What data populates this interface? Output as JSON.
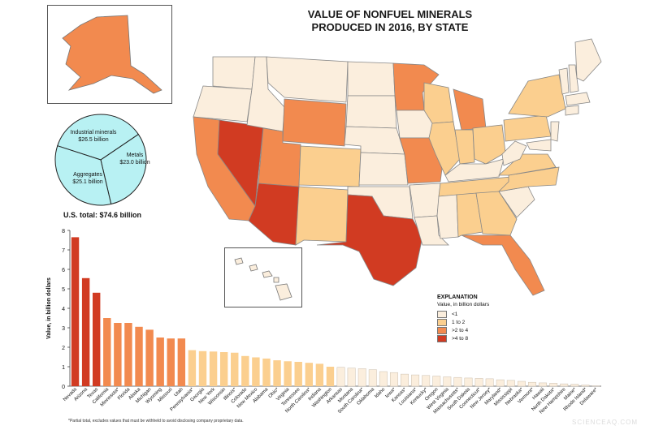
{
  "title": "VALUE OF NONFUEL MINERALS\nPRODUCED IN 2016, BY STATE",
  "colors": {
    "lt1": "#fbeedd",
    "b1to2": "#fbcf8f",
    "b2to4": "#f28a4f",
    "gt4": "#d13b22",
    "pie_fill": "#b8f1f3",
    "border": "#333333"
  },
  "pie": {
    "slices": [
      {
        "label": "Industrial minerals",
        "value_text": "$26.5 billion",
        "value": 26.5
      },
      {
        "label": "Metals",
        "value_text": "$23.0 billion",
        "value": 23.0
      },
      {
        "label": "Aggregates",
        "value_text": "$25.1 billion",
        "value": 25.1
      }
    ],
    "total_label": "U.S. total: $74.6 billion"
  },
  "legend": {
    "title": "EXPLANATION",
    "subtitle": "Value, in billion dollars",
    "items": [
      {
        "label": "<1",
        "color": "#fbeedd"
      },
      {
        "label": "1 to 2",
        "color": "#fbcf8f"
      },
      {
        "label": ">2 to 4",
        "color": "#f28a4f"
      },
      {
        "label": ">4 to 8",
        "color": "#d13b22"
      }
    ]
  },
  "footnote": "*Partial total, excludes values that must be withheld to avoid disclosing company proprietary data.",
  "watermark": "SCIENCEAQ.COM",
  "chart_data": {
    "type": "bar",
    "ylabel": "Value, in billion dollars",
    "ylim": [
      0,
      8
    ],
    "yticks": [
      0,
      1,
      2,
      3,
      4,
      5,
      6,
      7,
      8
    ],
    "categories": [
      "Nevada",
      "Arizona",
      "Texas",
      "California",
      "Minnesota*",
      "Florida",
      "Alaska",
      "Michigan",
      "Wyoming",
      "Missouri",
      "Utah",
      "Pennsylvania*",
      "Georgia",
      "New York",
      "Wisconsin",
      "Illinois*",
      "Colorado",
      "New Mexico",
      "Alabama",
      "Ohio*",
      "Virginia",
      "Tennessee",
      "North Carolina*",
      "Indiana",
      "Washington",
      "Arkansas",
      "Montana",
      "South Carolina*",
      "Oklahoma",
      "Idaho",
      "Iowa*",
      "Kansas*",
      "Louisiana*",
      "Kentucky*",
      "Oregon",
      "West Virginia",
      "Massachusetts*",
      "South Dakota",
      "Connecticut*",
      "New Jersey*",
      "Maryland*",
      "Mississippi",
      "Nebraska*",
      "Vermont*",
      "Hawaii",
      "North Dakota*",
      "New Hampshire",
      "Maine*",
      "Rhode Island*",
      "Delaware*"
    ],
    "values": [
      7.65,
      5.55,
      4.8,
      3.5,
      3.25,
      3.25,
      3.05,
      2.9,
      2.5,
      2.45,
      2.45,
      1.85,
      1.8,
      1.78,
      1.75,
      1.72,
      1.55,
      1.48,
      1.42,
      1.33,
      1.28,
      1.25,
      1.2,
      1.15,
      1.0,
      0.97,
      0.93,
      0.9,
      0.85,
      0.75,
      0.7,
      0.62,
      0.58,
      0.55,
      0.52,
      0.48,
      0.45,
      0.42,
      0.4,
      0.38,
      0.33,
      0.3,
      0.25,
      0.2,
      0.17,
      0.15,
      0.12,
      0.1,
      0.06,
      0.02
    ]
  }
}
